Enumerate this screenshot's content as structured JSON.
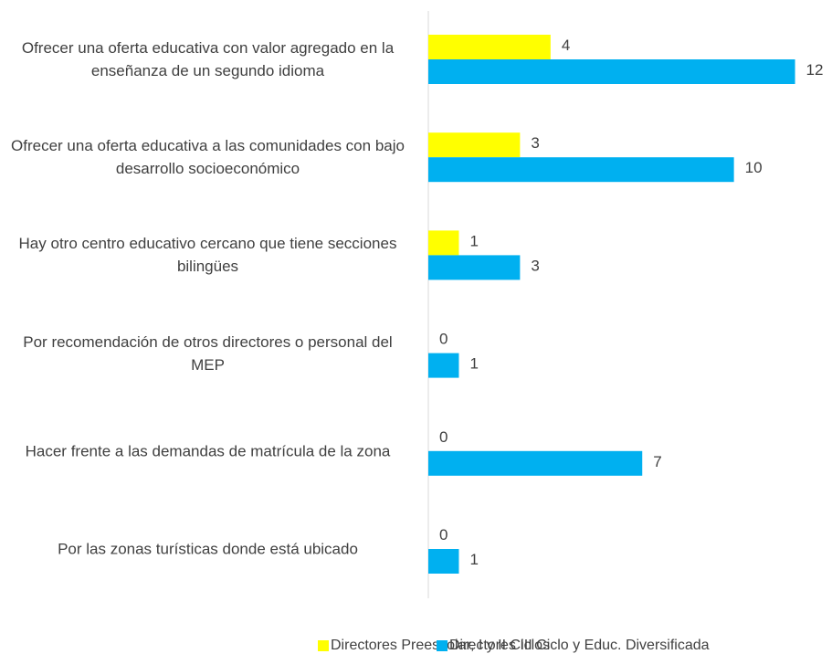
{
  "chart_data": {
    "type": "bar",
    "orientation": "horizontal",
    "categories": [
      "Ofrecer una oferta educativa con valor agregado en la enseñanza de un segundo idioma",
      "Ofrecer una oferta educativa a las comunidades con bajo desarrollo socioeconómico",
      "Hay otro centro educativo cercano que tiene secciones bilingües",
      "Por recomendación de otros directores o personal del MEP",
      "Hacer frente a las demandas de matrícula de la zona",
      "Por las zonas turísticas donde está ubicado"
    ],
    "series": [
      {
        "name": "Directores Preescolar, I y II Ciclos",
        "color": "#ffff00",
        "values": [
          4,
          3,
          1,
          0,
          0,
          0
        ]
      },
      {
        "name": "Directores III Ciclo y Educ. Diversificada",
        "color": "#00b0f0",
        "values": [
          12,
          10,
          3,
          1,
          7,
          1
        ]
      }
    ],
    "xlim": [
      0,
      13
    ],
    "legend": "bottom"
  }
}
